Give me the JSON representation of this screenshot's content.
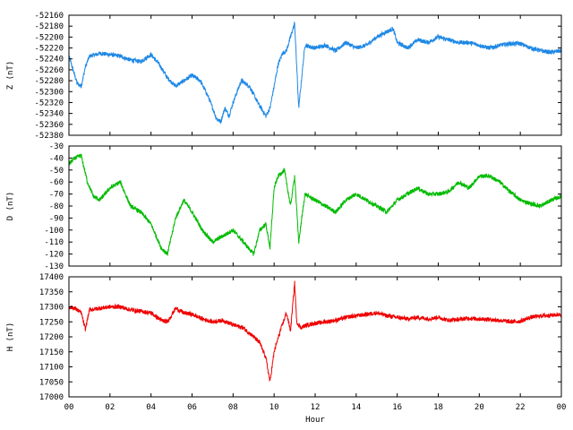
{
  "chart_data": [
    {
      "type": "line",
      "ylabel": "Z (nT)",
      "color": "#1e88e5",
      "ylim": [
        -52380,
        -52160
      ],
      "yticks": [
        -52160,
        -52180,
        -52200,
        -52220,
        -52240,
        -52260,
        -52280,
        -52300,
        -52320,
        -52340,
        -52360,
        -52380
      ],
      "xlim": [
        0,
        24
      ],
      "series": [
        {
          "x": [
            0,
            0.2,
            0.4,
            0.6,
            0.8,
            1.0,
            1.5,
            2.0,
            2.5,
            3.0,
            3.5,
            4.0,
            4.4,
            4.8,
            5.2,
            5.6,
            6.0,
            6.4,
            6.8,
            7.2,
            7.4,
            7.6,
            7.8,
            8.0,
            8.4,
            8.8,
            9.2,
            9.6,
            9.8,
            10.0,
            10.2,
            10.4,
            10.6,
            10.8,
            11.0,
            11.2,
            11.5,
            12.0,
            12.5,
            13.0,
            13.5,
            14.0,
            14.5,
            15.0,
            15.5,
            15.8,
            16.0,
            16.5,
            17.0,
            17.5,
            18.0,
            18.5,
            19.0,
            19.5,
            20.0,
            20.5,
            21.0,
            21.5,
            22.0,
            22.5,
            23.0,
            23.5,
            24.0
          ],
          "y": [
            -52235,
            -52260,
            -52285,
            -52290,
            -52255,
            -52235,
            -52230,
            -52232,
            -52235,
            -52242,
            -52245,
            -52232,
            -52250,
            -52275,
            -52290,
            -52280,
            -52270,
            -52280,
            -52310,
            -52350,
            -52355,
            -52330,
            -52345,
            -52320,
            -52280,
            -52290,
            -52320,
            -52345,
            -52330,
            -52290,
            -52250,
            -52230,
            -52225,
            -52200,
            -52175,
            -52330,
            -52215,
            -52220,
            -52215,
            -52225,
            -52210,
            -52220,
            -52215,
            -52200,
            -52190,
            -52185,
            -52210,
            -52220,
            -52205,
            -52210,
            -52200,
            -52205,
            -52210,
            -52210,
            -52215,
            -52220,
            -52215,
            -52212,
            -52212,
            -52220,
            -52225,
            -52228,
            -52225
          ]
        }
      ]
    },
    {
      "type": "line",
      "ylabel": "D (nT)",
      "color": "#00bb00",
      "ylim": [
        -130,
        -30
      ],
      "yticks": [
        -30,
        -40,
        -50,
        -60,
        -70,
        -80,
        -90,
        -100,
        -110,
        -120,
        -130
      ],
      "xlim": [
        0,
        24
      ],
      "series": [
        {
          "x": [
            0,
            0.3,
            0.6,
            0.9,
            1.2,
            1.5,
            2.0,
            2.5,
            3.0,
            3.5,
            4.0,
            4.5,
            4.8,
            5.2,
            5.6,
            6.0,
            6.5,
            7.0,
            7.5,
            8.0,
            8.5,
            9.0,
            9.3,
            9.6,
            9.8,
            10.0,
            10.2,
            10.5,
            10.8,
            11.0,
            11.2,
            11.5,
            12.0,
            12.5,
            13.0,
            13.5,
            14.0,
            14.5,
            15.0,
            15.5,
            16.0,
            16.5,
            17.0,
            17.5,
            18.0,
            18.5,
            19.0,
            19.5,
            20.0,
            20.5,
            21.0,
            21.5,
            22.0,
            22.5,
            23.0,
            23.5,
            24.0
          ],
          "y": [
            -45,
            -40,
            -38,
            -60,
            -72,
            -75,
            -65,
            -60,
            -80,
            -85,
            -95,
            -115,
            -120,
            -90,
            -75,
            -85,
            -100,
            -110,
            -105,
            -100,
            -110,
            -120,
            -100,
            -95,
            -115,
            -65,
            -55,
            -50,
            -80,
            -55,
            -110,
            -70,
            -75,
            -80,
            -85,
            -75,
            -70,
            -75,
            -80,
            -85,
            -75,
            -70,
            -65,
            -70,
            -70,
            -68,
            -60,
            -65,
            -55,
            -55,
            -60,
            -68,
            -75,
            -78,
            -80,
            -75,
            -72
          ]
        }
      ]
    },
    {
      "type": "line",
      "ylabel": "H (nT)",
      "xlabel": "Hour",
      "color": "#ee0000",
      "ylim": [
        17000,
        17400
      ],
      "yticks": [
        17400,
        17350,
        17300,
        17250,
        17200,
        17150,
        17100,
        17050,
        17000
      ],
      "xlim": [
        0,
        24
      ],
      "xticks": [
        "00",
        "02",
        "04",
        "06",
        "08",
        "10",
        "12",
        "14",
        "16",
        "18",
        "20",
        "22",
        "00"
      ],
      "series": [
        {
          "x": [
            0,
            0.3,
            0.6,
            0.8,
            1.0,
            1.5,
            2.0,
            2.5,
            3.0,
            3.5,
            4.0,
            4.5,
            4.8,
            5.2,
            5.6,
            6.0,
            6.5,
            7.0,
            7.5,
            8.0,
            8.5,
            9.0,
            9.3,
            9.6,
            9.8,
            10.0,
            10.3,
            10.6,
            10.8,
            11.0,
            11.1,
            11.3,
            11.6,
            12.0,
            12.5,
            13.0,
            13.5,
            14.0,
            14.5,
            15.0,
            15.5,
            16.0,
            16.5,
            17.0,
            17.5,
            18.0,
            18.5,
            19.0,
            19.5,
            20.0,
            20.5,
            21.0,
            21.5,
            22.0,
            22.5,
            23.0,
            23.5,
            24.0
          ],
          "y": [
            17300,
            17295,
            17280,
            17225,
            17290,
            17295,
            17300,
            17300,
            17290,
            17285,
            17280,
            17255,
            17250,
            17295,
            17280,
            17275,
            17260,
            17250,
            17255,
            17240,
            17230,
            17200,
            17180,
            17130,
            17050,
            17150,
            17220,
            17280,
            17220,
            17380,
            17250,
            17230,
            17240,
            17245,
            17250,
            17255,
            17265,
            17270,
            17275,
            17280,
            17270,
            17265,
            17260,
            17265,
            17260,
            17265,
            17255,
            17258,
            17262,
            17260,
            17258,
            17255,
            17250,
            17252,
            17265,
            17270,
            17272,
            17275
          ]
        }
      ]
    }
  ]
}
